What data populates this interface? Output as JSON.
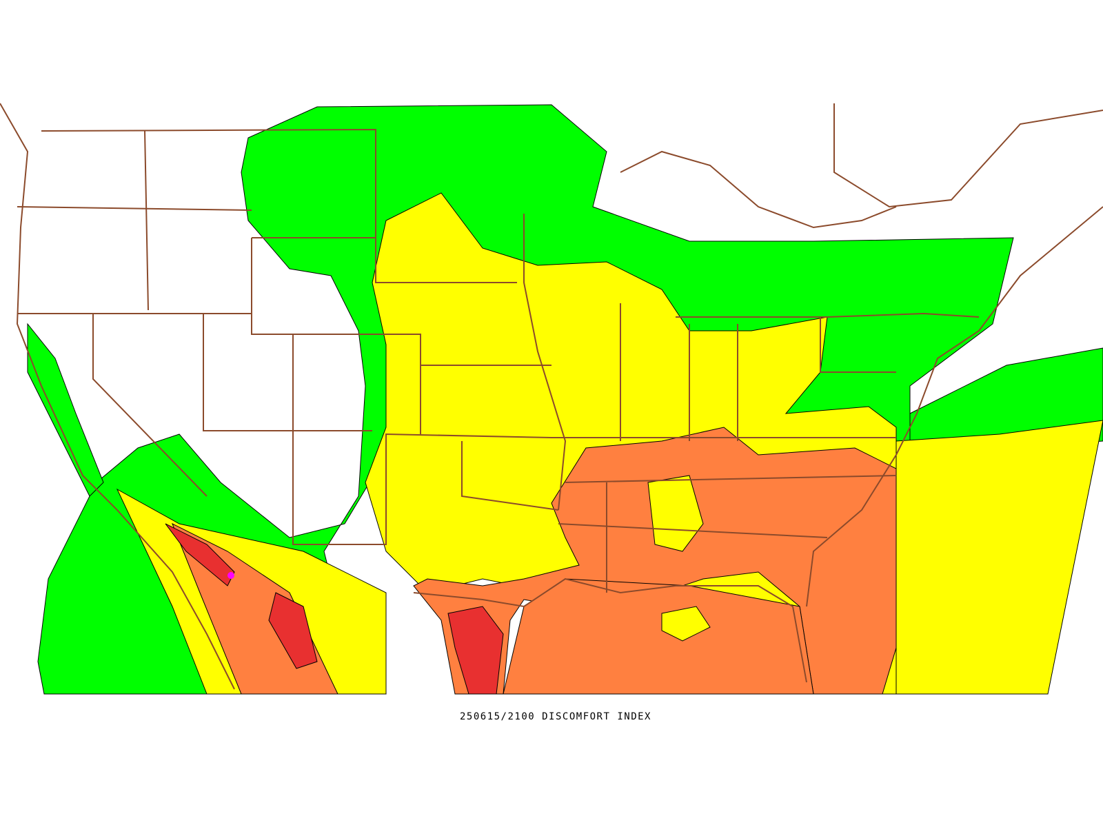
{
  "title": "250615/2100 DISCOMFORT INDEX"
}
